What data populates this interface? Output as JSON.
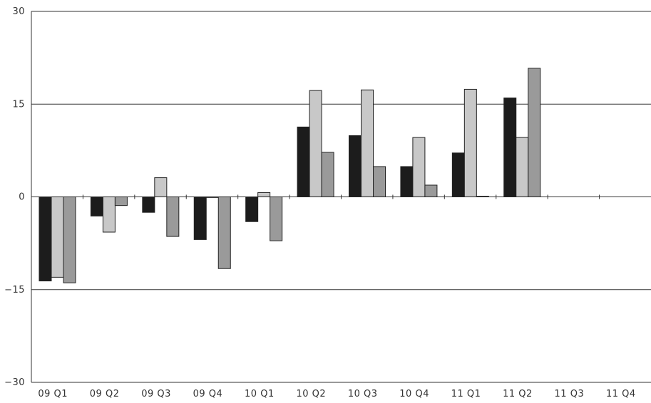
{
  "chart_data": {
    "type": "bar",
    "categories": [
      "09 Q1",
      "09 Q2",
      "09 Q3",
      "09 Q4",
      "10 Q1",
      "10 Q2",
      "10 Q3",
      "10 Q4",
      "11 Q1",
      "11 Q2",
      "11 Q3",
      "11 Q4"
    ],
    "series": [
      {
        "values": [
          -13.6,
          -3.1,
          -2.5,
          -6.9,
          -4.0,
          11.3,
          9.9,
          4.9,
          7.1,
          16.0,
          null,
          null
        ],
        "color": "#1c1c1c"
      },
      {
        "values": [
          -13.0,
          -5.7,
          3.1,
          -0.1,
          0.7,
          17.2,
          17.3,
          9.6,
          17.4,
          9.6,
          null,
          null
        ],
        "color": "#c8c8c8"
      },
      {
        "values": [
          -13.9,
          -1.4,
          -6.4,
          -11.6,
          -7.1,
          7.2,
          4.9,
          1.9,
          0.1,
          20.8,
          null,
          null
        ],
        "color": "#9a9a9a"
      }
    ],
    "ylim": [
      -30,
      30
    ],
    "yticks": [
      -30,
      -15,
      0,
      15,
      30
    ],
    "ytick_labels": [
      "−30",
      "−15",
      "0",
      "15",
      "30"
    ],
    "grid": true,
    "title": "",
    "xlabel": "",
    "ylabel": ""
  }
}
